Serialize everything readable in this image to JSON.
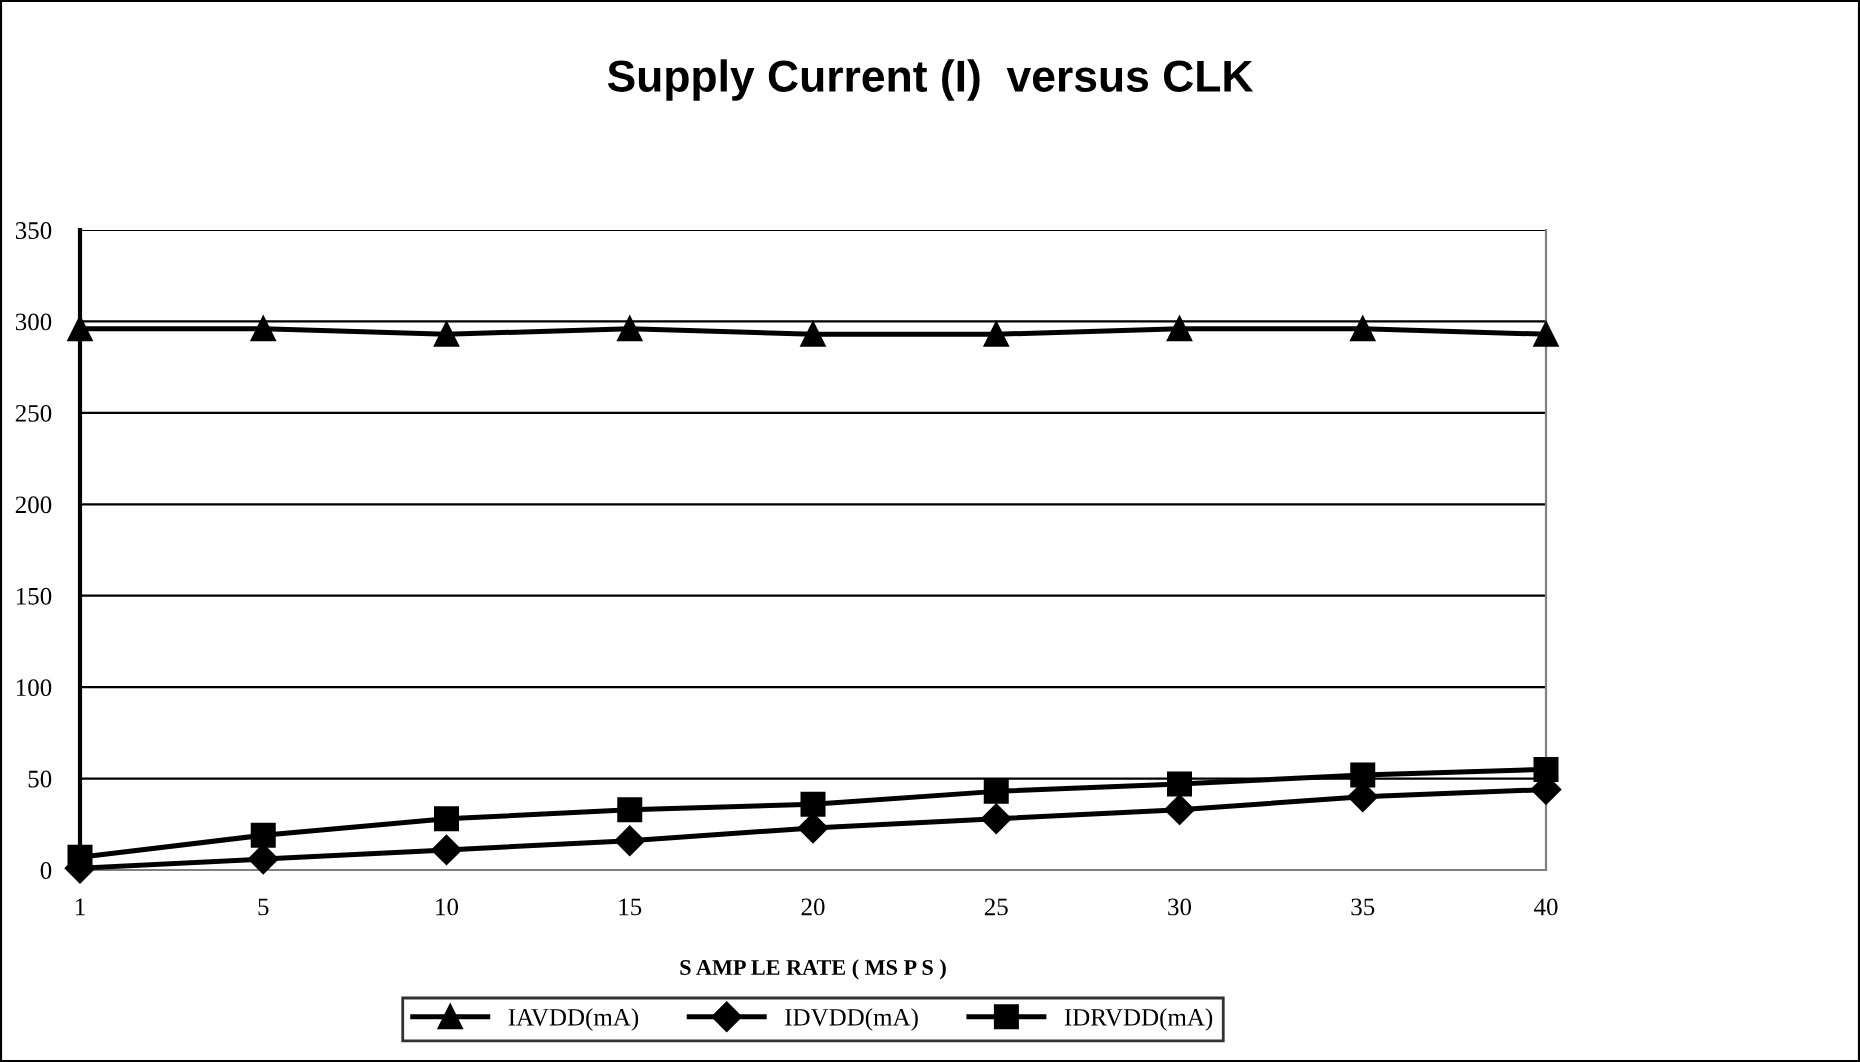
{
  "chart_data": {
    "type": "line",
    "title": "Supply Current (I)  versus CLK",
    "xlabel": "S AMP LE RATE ( MS P S )",
    "categories": [
      "1",
      "5",
      "10",
      "15",
      "20",
      "25",
      "30",
      "35",
      "40"
    ],
    "series": [
      {
        "name": "IAVDD(mA)",
        "color": "#000000",
        "marker": "triangle",
        "values": [
          296,
          296,
          293,
          296,
          293,
          293,
          296,
          296,
          293
        ]
      },
      {
        "name": "IDVDD(mA)",
        "color": "#000000",
        "marker": "diamond",
        "values": [
          1,
          6,
          11,
          16,
          23,
          28,
          33,
          40,
          44
        ]
      },
      {
        "name": "IDRVDD(mA)",
        "color": "#000000",
        "marker": "square",
        "values": [
          7,
          19,
          28,
          33,
          36,
          43,
          47,
          52,
          55
        ]
      }
    ],
    "ylim": [
      0,
      350
    ],
    "yticks": [
      0,
      50,
      100,
      150,
      200,
      250,
      300,
      350
    ],
    "grid": "y",
    "legend": "bottom",
    "line_style": "solid"
  }
}
